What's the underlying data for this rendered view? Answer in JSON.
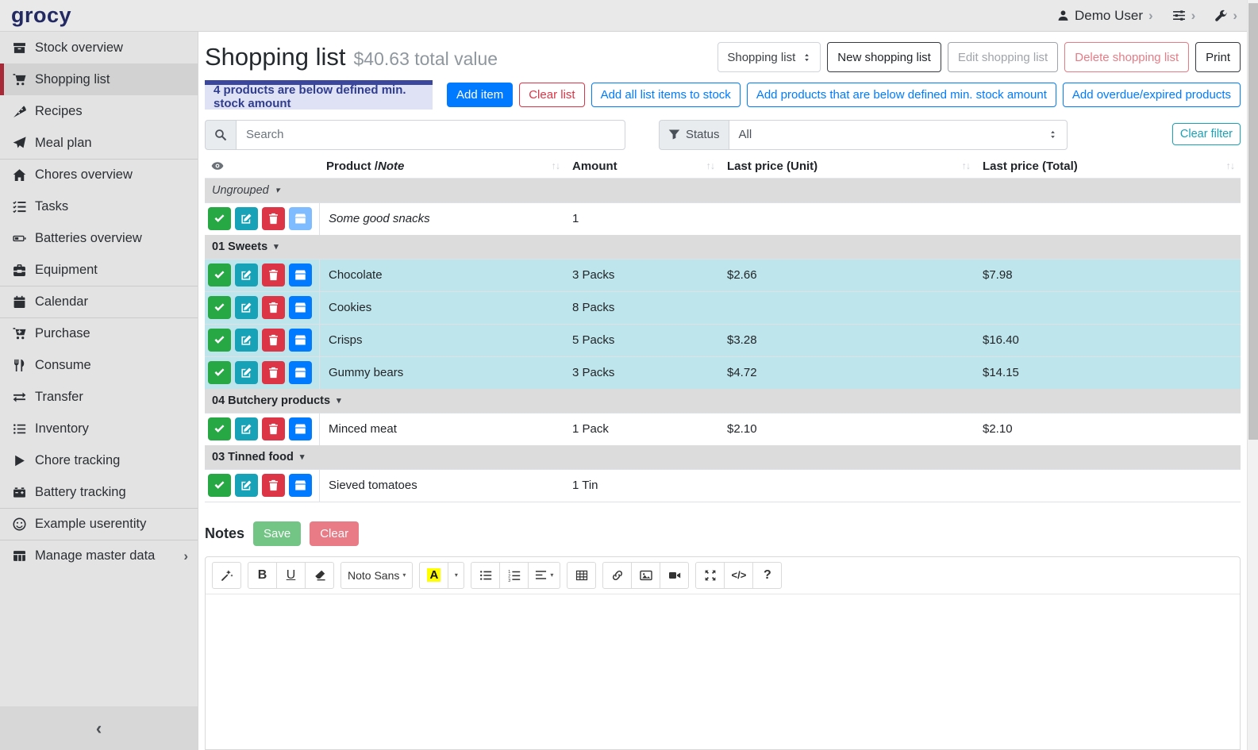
{
  "colors": {
    "primary": "#007bff",
    "success": "#28a745",
    "danger": "#dc3545",
    "info": "#17a2b8",
    "accent_red": "#a72837",
    "row_highlight": "#bee5eb",
    "alert_bg": "#dfe2f4",
    "alert_text": "#303d8f",
    "alert_bar": "#3a479d"
  },
  "navbar": {
    "logo": "grocy",
    "user_label": "Demo User",
    "icons": [
      "user",
      "sliders",
      "wrench"
    ]
  },
  "sidebar": {
    "items": [
      {
        "label": "Stock overview",
        "icon": "boxes"
      },
      {
        "label": "Shopping list",
        "icon": "cart",
        "active": true
      },
      {
        "label": "Recipes",
        "icon": "pizza"
      },
      {
        "label": "Meal plan",
        "icon": "paper-plane"
      },
      {
        "label": "Chores overview",
        "icon": "home",
        "divider": true
      },
      {
        "label": "Tasks",
        "icon": "tasks"
      },
      {
        "label": "Batteries overview",
        "icon": "battery"
      },
      {
        "label": "Equipment",
        "icon": "toolbox"
      },
      {
        "label": "Calendar",
        "icon": "calendar",
        "divider": true
      },
      {
        "label": "Purchase",
        "icon": "cart-plus",
        "divider": true
      },
      {
        "label": "Consume",
        "icon": "utensils"
      },
      {
        "label": "Transfer",
        "icon": "exchange"
      },
      {
        "label": "Inventory",
        "icon": "list"
      },
      {
        "label": "Chore tracking",
        "icon": "play"
      },
      {
        "label": "Battery tracking",
        "icon": "car-battery"
      },
      {
        "label": "Example userentity",
        "icon": "smile",
        "divider": true
      },
      {
        "label": "Manage master data",
        "icon": "table",
        "divider": true,
        "chevron": true
      }
    ],
    "collapse_icon": "angle-left"
  },
  "header": {
    "title": "Shopping list",
    "subtitle": "$40.63 total value",
    "list_select_value": "Shopping list",
    "buttons": [
      {
        "label": "New shopping list",
        "style": "dark"
      },
      {
        "label": "Edit shopping list",
        "style": "secondary"
      },
      {
        "label": "Delete shopping list",
        "style": "danger"
      },
      {
        "label": "Print",
        "style": "dark"
      }
    ]
  },
  "alert": {
    "text": "4 products are below defined min. stock amount"
  },
  "actions": [
    {
      "label": "Add item",
      "style": "solid-primary"
    },
    {
      "label": "Clear list",
      "style": "outline-danger"
    },
    {
      "label": "Add all list items to stock",
      "style": "outline-primary"
    },
    {
      "label": "Add products that are below defined min. stock amount",
      "style": "outline-primary"
    },
    {
      "label": "Add overdue/expired products",
      "style": "outline-primary"
    }
  ],
  "filters": {
    "search_placeholder": "Search",
    "search_icon": "search",
    "status_icon": "funnel",
    "status_label": "Status",
    "status_value": "All",
    "clear_filter_label": "Clear filter"
  },
  "table": {
    "columns": [
      {
        "icon": "eye"
      },
      {
        "label": "Product / ",
        "italic": "Note",
        "sortable": true
      },
      {
        "label": "Amount",
        "sortable": true
      },
      {
        "label": "Last price (Unit)",
        "sortable": true
      },
      {
        "label": "Last price (Total)",
        "sortable": true
      }
    ],
    "row_actions": [
      {
        "name": "mark-done-button",
        "icon": "check",
        "style": "success"
      },
      {
        "name": "edit-button",
        "icon": "edit",
        "style": "info"
      },
      {
        "name": "delete-button",
        "icon": "trash",
        "style": "danger"
      },
      {
        "name": "add-to-stock-button",
        "icon": "box",
        "style": "primary"
      }
    ],
    "groups": [
      {
        "name": "Ungrouped",
        "italic": true,
        "rows": [
          {
            "product": "Some good snacks",
            "product_italic": true,
            "amount": "1",
            "unit_price": "",
            "total_price": "",
            "highlighted": false,
            "stock_btn_muted": true
          }
        ]
      },
      {
        "name": "01 Sweets",
        "rows": [
          {
            "product": "Chocolate",
            "amount": "3 Packs",
            "unit_price": "$2.66",
            "total_price": "$7.98",
            "highlighted": true
          },
          {
            "product": "Cookies",
            "amount": "8 Packs",
            "unit_price": "",
            "total_price": "",
            "highlighted": true
          },
          {
            "product": "Crisps",
            "amount": "5 Packs",
            "unit_price": "$3.28",
            "total_price": "$16.40",
            "highlighted": true
          },
          {
            "product": "Gummy bears",
            "amount": "3 Packs",
            "unit_price": "$4.72",
            "total_price": "$14.15",
            "highlighted": true
          }
        ]
      },
      {
        "name": "04 Butchery products",
        "rows": [
          {
            "product": "Minced meat",
            "amount": "1 Pack",
            "unit_price": "$2.10",
            "total_price": "$2.10",
            "highlighted": false
          }
        ]
      },
      {
        "name": "03 Tinned food",
        "rows": [
          {
            "product": "Sieved tomatoes",
            "amount": "1 Tin",
            "unit_price": "",
            "total_price": "",
            "highlighted": false
          }
        ]
      }
    ]
  },
  "notes": {
    "title": "Notes",
    "save_label": "Save",
    "clear_label": "Clear",
    "editor_font": "Noto Sans",
    "toolbar_groups": [
      [
        "magic"
      ],
      [
        "bold",
        "underline",
        "eraser"
      ],
      [
        "fontname"
      ],
      [
        "color",
        "color-caret"
      ],
      [
        "ul",
        "ol",
        "paragraph"
      ],
      [
        "grid"
      ],
      [
        "link",
        "picture",
        "video"
      ],
      [
        "fullscreen",
        "codeview",
        "help"
      ]
    ]
  }
}
